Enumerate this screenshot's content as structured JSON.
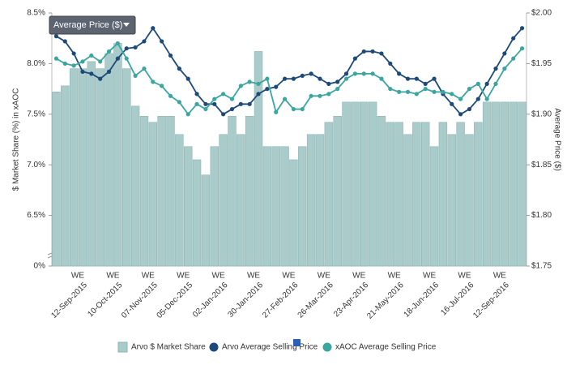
{
  "chart_data": {
    "type": "combo",
    "dropdown_label": "Average Price ($)",
    "y_label": "$ Market Share (%) in xAOC",
    "y2_label": "Average Price ($)",
    "x_tick_prefix": "WE",
    "categories": [
      null,
      null,
      null,
      "12-Sep-2015",
      null,
      null,
      null,
      "10-Oct-2015",
      null,
      null,
      null,
      "07-Nov-2015",
      null,
      null,
      null,
      "05-Dec-2015",
      null,
      null,
      null,
      "02-Jan-2016",
      null,
      null,
      null,
      "30-Jan-2016",
      null,
      null,
      null,
      "27-Feb-2016",
      null,
      null,
      null,
      "26-Mar-2016",
      null,
      null,
      null,
      "23-Apr-2016",
      null,
      null,
      null,
      "21-May-2016",
      null,
      null,
      null,
      "18-Jun-2016",
      null,
      null,
      null,
      "16-Jul-2016",
      null,
      null,
      null,
      "12-Sep-2016",
      null,
      null
    ],
    "series": [
      {
        "name": "Arvo $ Market Share",
        "type": "bar",
        "color": "#a9cbca",
        "values": [
          7.72,
          7.78,
          7.95,
          7.95,
          8.02,
          7.95,
          8.1,
          8.2,
          7.95,
          7.58,
          7.48,
          7.42,
          7.48,
          7.48,
          7.3,
          7.18,
          7.05,
          6.9,
          7.18,
          7.3,
          7.48,
          7.3,
          7.48,
          8.12,
          7.18,
          7.18,
          7.18,
          7.05,
          7.18,
          7.3,
          7.3,
          7.42,
          7.48,
          7.62,
          7.62,
          7.62,
          7.62,
          7.48,
          7.42,
          7.42,
          7.3,
          7.42,
          7.42,
          7.18,
          7.42,
          7.3,
          7.42,
          7.3,
          7.42,
          7.62,
          7.62,
          7.62,
          7.62,
          7.62
        ]
      },
      {
        "name": "Arvo Average Selling Price",
        "type": "line",
        "axis": "y2",
        "color": "#1d4a78",
        "values": [
          1.977,
          1.972,
          1.96,
          1.942,
          1.94,
          1.935,
          1.942,
          1.955,
          1.965,
          1.966,
          1.972,
          1.985,
          1.972,
          1.958,
          1.945,
          1.935,
          1.92,
          1.91,
          1.91,
          1.9,
          1.905,
          1.91,
          1.91,
          1.92,
          1.925,
          1.927,
          1.935,
          1.935,
          1.938,
          1.94,
          1.935,
          1.93,
          1.932,
          1.94,
          1.955,
          1.962,
          1.962,
          1.96,
          1.95,
          1.94,
          1.935,
          1.935,
          1.93,
          1.935,
          1.92,
          1.91,
          1.9,
          1.905,
          1.915,
          1.93,
          1.945,
          1.96,
          1.975,
          1.985
        ]
      },
      {
        "name": "xAOC Average Selling Price",
        "type": "line",
        "axis": "y2",
        "color": "#3ba5a0",
        "values": [
          1.955,
          1.95,
          1.948,
          1.952,
          1.958,
          1.952,
          1.962,
          1.97,
          1.955,
          1.938,
          1.945,
          1.932,
          1.928,
          1.918,
          1.912,
          1.9,
          1.91,
          1.905,
          1.915,
          1.92,
          1.915,
          1.928,
          1.932,
          1.93,
          1.935,
          1.902,
          1.915,
          1.905,
          1.905,
          1.918,
          1.918,
          1.92,
          1.925,
          1.935,
          1.94,
          1.94,
          1.94,
          1.935,
          1.925,
          1.922,
          1.922,
          1.92,
          1.925,
          1.922,
          1.922,
          1.92,
          1.915,
          1.925,
          1.93,
          1.915,
          1.93,
          1.945,
          1.955,
          1.965
        ]
      }
    ],
    "ylim": [
      0,
      8.5
    ],
    "yticks": [
      {
        "value": 0,
        "label": "0%"
      },
      {
        "value": 6.5,
        "label": "6.5%"
      },
      {
        "value": 7.0,
        "label": "7.0%"
      },
      {
        "value": 7.5,
        "label": "7.5%"
      },
      {
        "value": 8.0,
        "label": "8.0%"
      },
      {
        "value": 8.5,
        "label": "8.5%"
      }
    ],
    "y2lim": [
      1.75,
      2.0
    ],
    "y2ticks": [
      {
        "value": 1.75,
        "label": "$1.75"
      },
      {
        "value": 1.8,
        "label": "$1.80"
      },
      {
        "value": 1.85,
        "label": "$1.85"
      },
      {
        "value": 1.9,
        "label": "$1.90"
      },
      {
        "value": 1.95,
        "label": "$1.95"
      },
      {
        "value": 2.0,
        "label": "$2.00"
      }
    ]
  }
}
